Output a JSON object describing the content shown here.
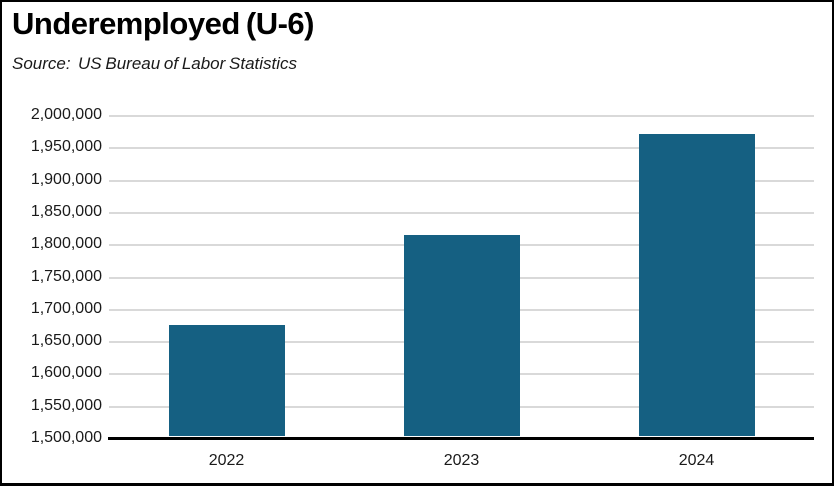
{
  "header": {
    "title": "Underemployed (U-6)",
    "source": "Source:  US Bureau of Labor Statistics"
  },
  "chart_data": {
    "type": "bar",
    "title": "Underemployed (U-6)",
    "subtitle": "Source:  US Bureau of Labor Statistics",
    "categories": [
      "2022",
      "2023",
      "2024"
    ],
    "values": [
      1675000,
      1815000,
      1970000
    ],
    "xlabel": "",
    "ylabel": "",
    "ylim": [
      1500000,
      2000000
    ],
    "ytick_step": 50000,
    "ytick_labels": [
      "2,000,000",
      "1,950,000",
      "1,900,000",
      "1,850,000",
      "1,800,000",
      "1,750,000",
      "1,700,000",
      "1,650,000",
      "1,600,000",
      "1,550,000",
      "1,500,000"
    ],
    "grid": true,
    "legend": false,
    "colors": {
      "bar": "#156082",
      "gridline": "#d9d9d9",
      "axis": "#000000",
      "text": "#1a1a1a"
    }
  },
  "layout_note": ""
}
